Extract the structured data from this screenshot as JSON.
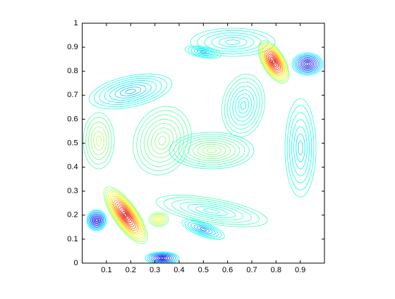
{
  "chart_data": {
    "type": "contour",
    "xlim": [
      0,
      1
    ],
    "ylim": [
      0,
      1
    ],
    "xticks": [
      0.1,
      0.2,
      0.3,
      0.4,
      0.5,
      0.6,
      0.7,
      0.8,
      0.9
    ],
    "yticks": [
      0,
      0.1,
      0.2,
      0.3,
      0.4,
      0.5,
      0.6,
      0.7,
      0.8,
      0.9,
      1
    ]
  }
}
